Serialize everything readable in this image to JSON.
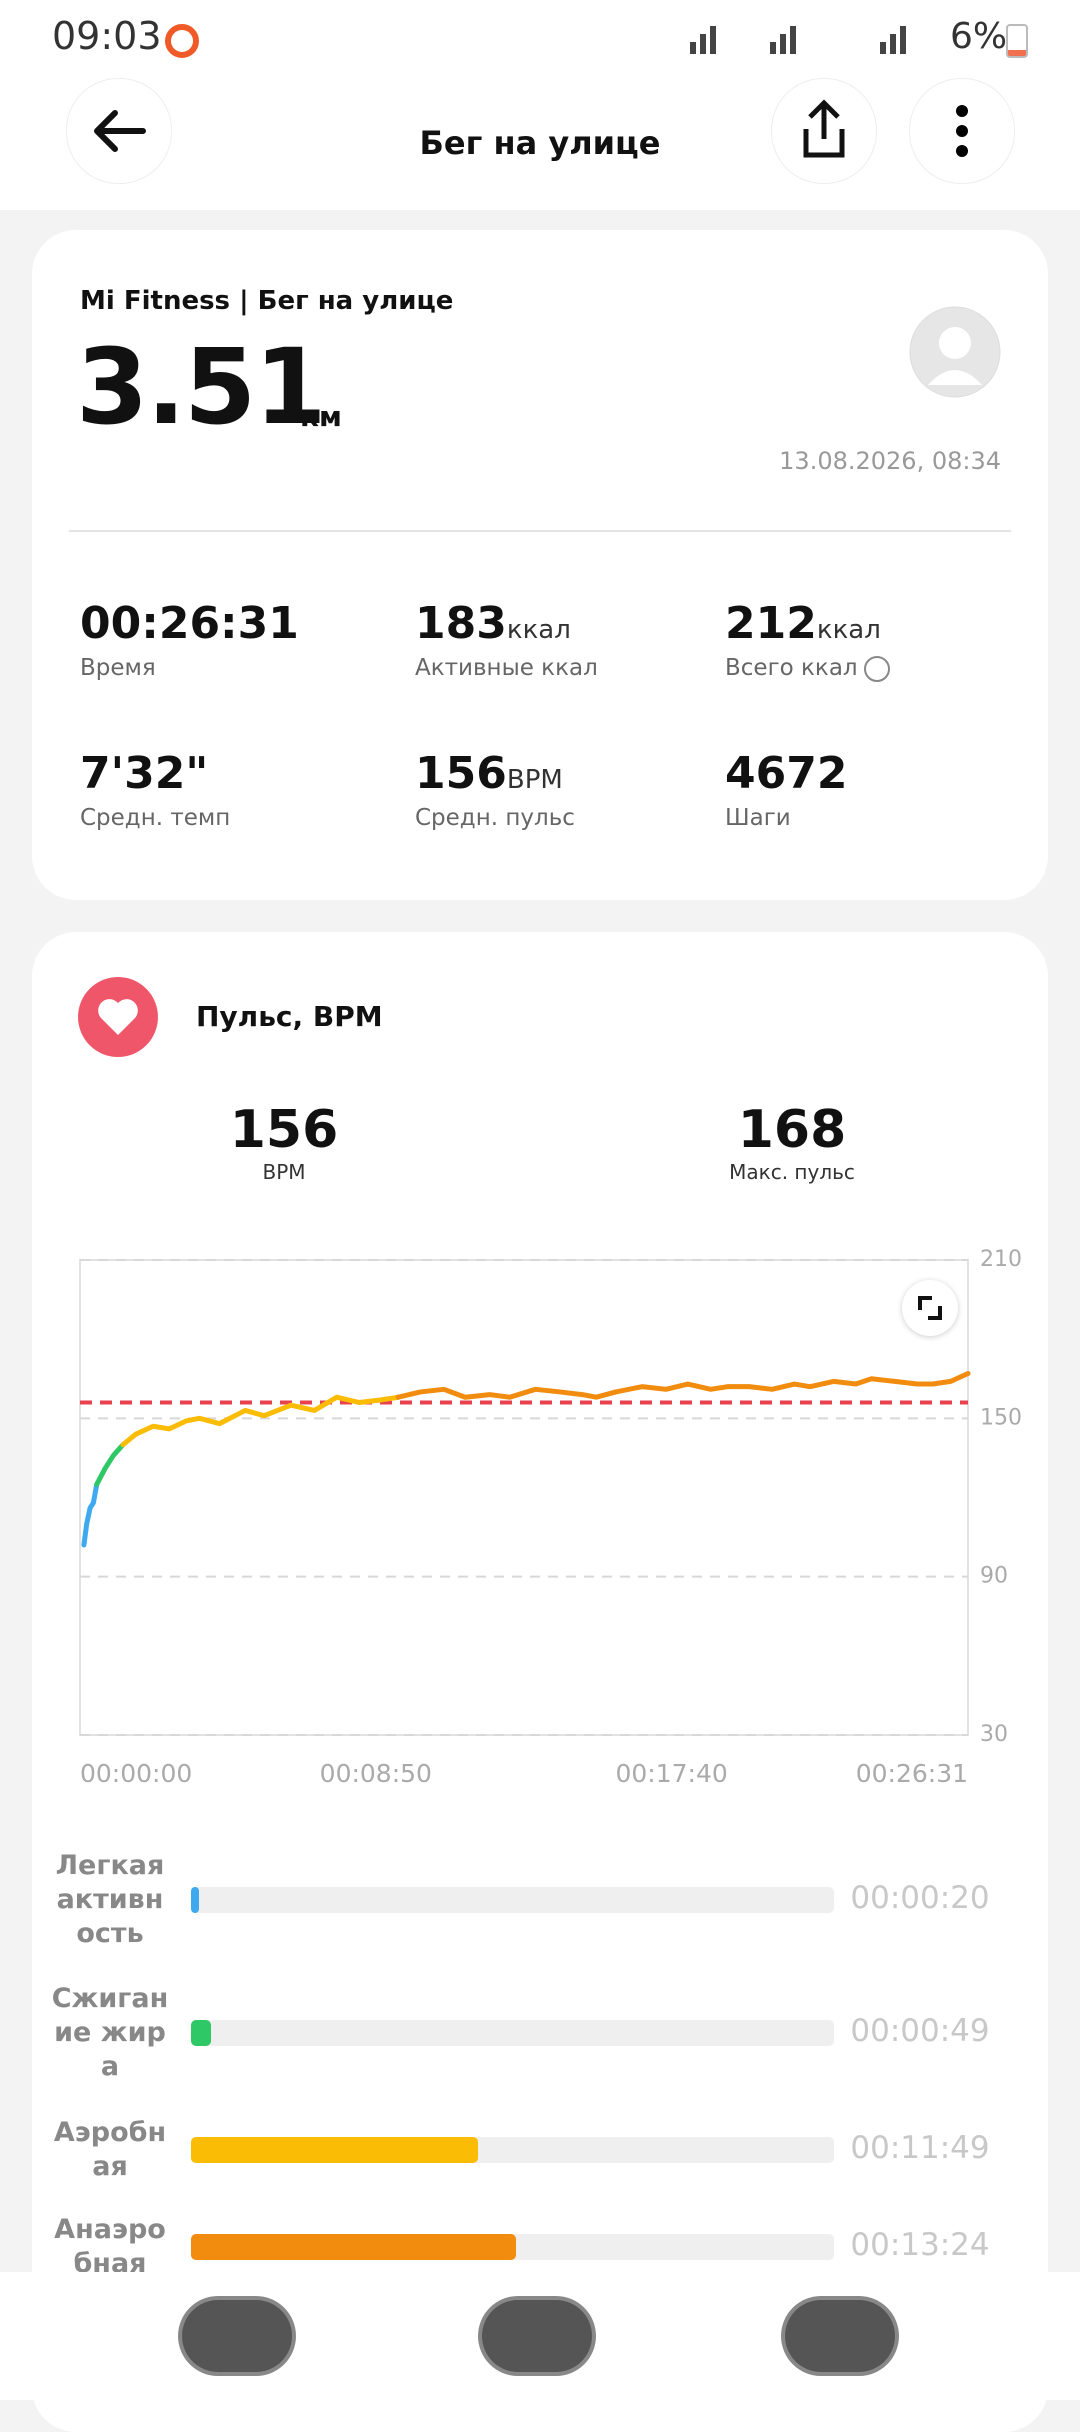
{
  "status_bar": {
    "time": "09:03",
    "battery": "6%"
  },
  "header": {
    "title": "Бег на улице"
  },
  "summary": {
    "source": "Mi Fitness | Бег на улице",
    "distance": "3.51",
    "distance_unit": "км",
    "datetime": "13.08.2026, 08:34",
    "stats": [
      {
        "value": "00:26:31",
        "label": "Время"
      },
      {
        "value": "183",
        "unit": "ккал",
        "label": "Активные ккал"
      },
      {
        "value": "212",
        "unit": "ккал",
        "label": "Всего ккал"
      },
      {
        "value": "7'32\"",
        "label": "Средн. темп"
      },
      {
        "value": "156",
        "unit": "BPM",
        "label": "Средн. пульс"
      },
      {
        "value": "4672",
        "label": "Шаги"
      }
    ]
  },
  "heart_rate": {
    "title": "Пульс, BPM",
    "stats": [
      {
        "value": "156",
        "label": "BPM"
      },
      {
        "value": "168",
        "label": "Макс. пульс"
      }
    ]
  },
  "chart_data": [
    {
      "type": "line",
      "xlim": [
        0,
        1591
      ],
      "xticks": [
        {
          "value": 0,
          "label": "00:00:00"
        },
        {
          "value": 530,
          "label": "00:08:50"
        },
        {
          "value": 1060,
          "label": "00:17:40"
        },
        {
          "value": 1591,
          "label": "00:26:31"
        }
      ],
      "ylim": [
        30,
        210
      ],
      "yticks": [
        30,
        90,
        150,
        210
      ],
      "grid": true,
      "reference_line": {
        "value": 156,
        "color": "#e8424f"
      },
      "series": [
        {
          "color": "#3fa9f0",
          "x": [
            7,
            12,
            18,
            24,
            30
          ],
          "values": [
            102,
            110,
            116,
            118,
            125
          ]
        },
        {
          "color": "#2ec866",
          "x": [
            30,
            45,
            60,
            77
          ],
          "values": [
            125,
            131,
            136,
            140
          ]
        },
        {
          "color": "#fbbc05",
          "x": [
            77,
            100,
            131,
            160,
            190,
            214,
            250,
            296,
            330,
            378,
            420,
            460,
            500,
            540,
            570
          ],
          "values": [
            140,
            144,
            147,
            146,
            149,
            150,
            148,
            153,
            151,
            155,
            153,
            158,
            156,
            157,
            158
          ]
        },
        {
          "color": "#f28c0f",
          "x": [
            570,
            610,
            652,
            690,
            734,
            770,
            816,
            860,
            900,
            925,
            960,
            1007,
            1050,
            1089,
            1130,
            1160,
            1199,
            1240,
            1280,
            1308,
            1350,
            1390,
            1418,
            1460,
            1500,
            1528,
            1560,
            1591
          ],
          "values": [
            158,
            160,
            161,
            158,
            159,
            158,
            161,
            160,
            159,
            158,
            160,
            162,
            161,
            163,
            161,
            162,
            162,
            161,
            163,
            162,
            164,
            163,
            165,
            164,
            163,
            163,
            164,
            167
          ]
        }
      ]
    },
    {
      "type": "bar",
      "orientation": "horizontal",
      "categories": [
        "Легкая активность",
        "Сжигание жира",
        "Аэробная",
        "Анаэробная"
      ],
      "values": [
        20,
        49,
        709,
        804
      ],
      "value_labels": [
        "00:00:20",
        "00:00:49",
        "00:11:49",
        "00:13:24"
      ],
      "colors": [
        "#3fa9f0",
        "#2ec866",
        "#fbbc05",
        "#f28c0f"
      ],
      "xlim": [
        0,
        1591
      ]
    }
  ]
}
